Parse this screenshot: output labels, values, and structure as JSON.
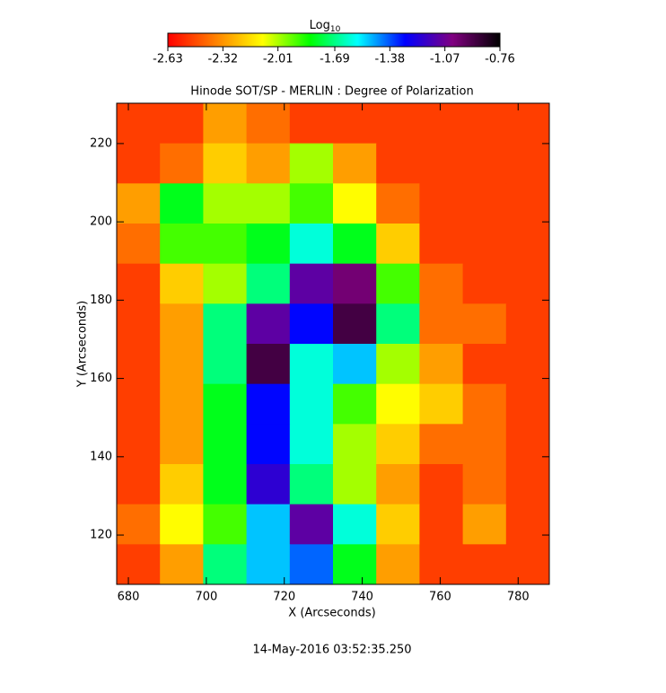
{
  "chart_data": {
    "type": "heatmap",
    "title": "Hinode SOT/SP - MERLIN : Degree of Polarization",
    "x_label": "X (Arcseconds)",
    "y_label": "Y (Arcseconds)",
    "timestamp": "14-May-2016 03:52:35.250",
    "colorbar_label": "Log",
    "colorbar_label_sub": "10",
    "clim": [
      -2.63,
      -0.76
    ],
    "cticks": [
      -2.63,
      -2.32,
      -2.01,
      -1.69,
      -1.38,
      -1.07,
      -0.76
    ],
    "colormap": [
      "#ff0000",
      "#ff8000",
      "#ffff00",
      "#00ff00",
      "#00ffff",
      "#0000ff",
      "#800080",
      "#000000"
    ],
    "xlim": [
      677,
      788
    ],
    "ylim": [
      107.4,
      230.3
    ],
    "xticks": [
      680,
      700,
      720,
      740,
      760,
      780
    ],
    "yticks": [
      120,
      140,
      160,
      180,
      200,
      220
    ],
    "z": [
      [
        -2.5,
        -2.5,
        -2.3,
        -2.4,
        -2.5,
        -2.5,
        -2.5,
        -2.5,
        -2.5,
        -2.5
      ],
      [
        -2.5,
        -2.4,
        -2.2,
        -2.3,
        -2.0,
        -2.3,
        -2.5,
        -2.5,
        -2.5,
        -2.5
      ],
      [
        -2.3,
        -1.8,
        -2.0,
        -2.0,
        -1.9,
        -2.1,
        -2.4,
        -2.5,
        -2.5,
        -2.5
      ],
      [
        -2.4,
        -1.9,
        -1.9,
        -1.8,
        -1.6,
        -1.8,
        -2.2,
        -2.5,
        -2.5,
        -2.5
      ],
      [
        -2.5,
        -2.2,
        -2.0,
        -1.7,
        -1.1,
        -1.0,
        -1.9,
        -2.4,
        -2.5,
        -2.5
      ],
      [
        -2.5,
        -2.3,
        -1.7,
        -1.1,
        -1.3,
        -0.9,
        -1.7,
        -2.4,
        -2.4,
        -2.5
      ],
      [
        -2.5,
        -2.3,
        -1.7,
        -0.9,
        -1.6,
        -1.5,
        -2.0,
        -2.3,
        -2.5,
        -2.5
      ],
      [
        -2.5,
        -2.3,
        -1.8,
        -1.3,
        -1.6,
        -1.9,
        -2.1,
        -2.2,
        -2.4,
        -2.5
      ],
      [
        -2.5,
        -2.3,
        -1.8,
        -1.3,
        -1.6,
        -2.0,
        -2.2,
        -2.4,
        -2.4,
        -2.5
      ],
      [
        -2.5,
        -2.2,
        -1.8,
        -1.2,
        -1.7,
        -2.0,
        -2.3,
        -2.5,
        -2.4,
        -2.5
      ],
      [
        -2.4,
        -2.1,
        -1.9,
        -1.5,
        -1.1,
        -1.6,
        -2.2,
        -2.5,
        -2.3,
        -2.5
      ],
      [
        -2.5,
        -2.3,
        -1.7,
        -1.5,
        -1.4,
        -1.8,
        -2.3,
        -2.5,
        -2.5,
        -2.5
      ]
    ]
  }
}
